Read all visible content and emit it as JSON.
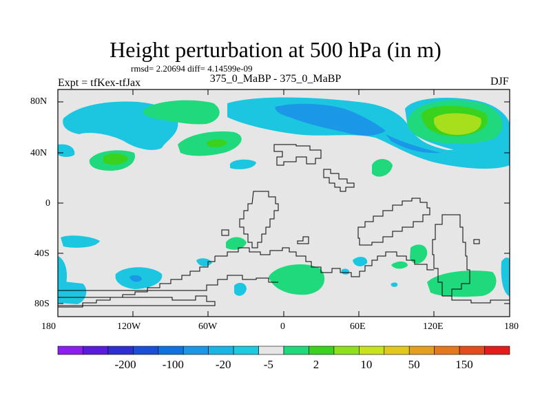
{
  "title": "Height perturbation at 500 hPa (in m)",
  "stats": "rmsd= 2.20694 diff= 4.14599e-09",
  "left_label": "Expt = tfKex-tfJax",
  "center_label": "375_0_MaBP - 375_0_MaBP",
  "right_label": "DJF",
  "x_ticks": [
    "180",
    "120W",
    "60W",
    "0",
    "60E",
    "120E",
    "180"
  ],
  "y_ticks": [
    "80N",
    "40N",
    "0",
    "40S",
    "80S"
  ],
  "colorbar": {
    "colors": [
      "#8b1ff0",
      "#5a1cdc",
      "#2e2ed2",
      "#1b4fd8",
      "#0e73e0",
      "#1a97e6",
      "#1ab6e3",
      "#1ccbe0",
      "#e6e6e6",
      "#20d97c",
      "#3ad21c",
      "#8fe01c",
      "#c8e21c",
      "#e2c81c",
      "#e4a01c",
      "#e4781c",
      "#e44c1c",
      "#e41c1c"
    ],
    "labels": [
      "-200",
      "-100",
      "-20",
      "-5",
      "2",
      "10",
      "50",
      "150"
    ]
  }
}
